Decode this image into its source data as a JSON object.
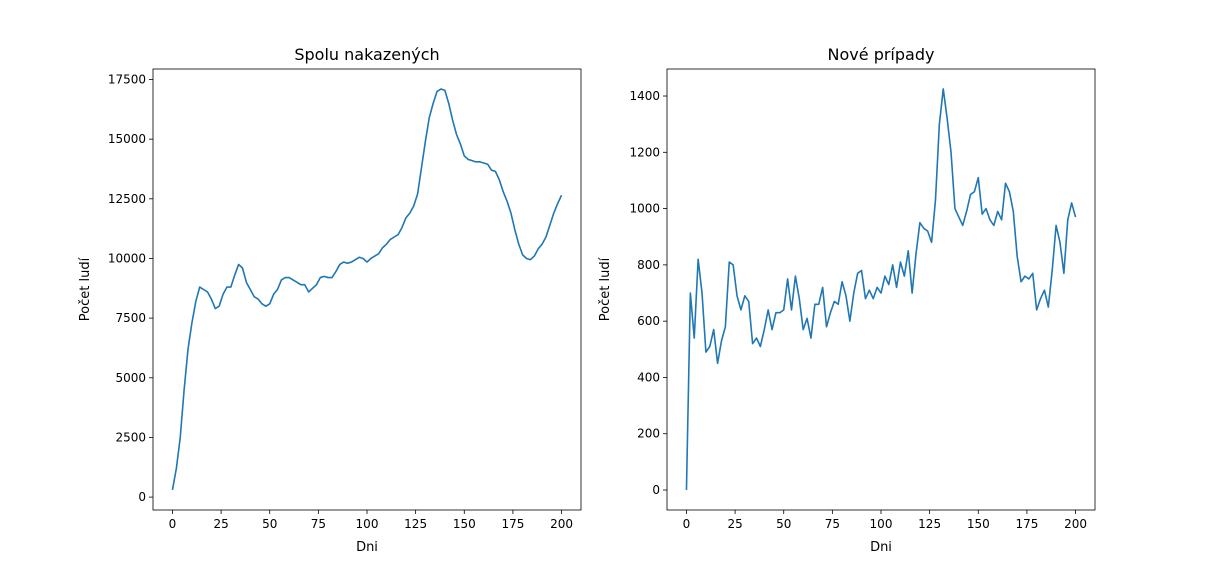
{
  "chart_data": [
    {
      "type": "line",
      "title": "Spolu nakazených",
      "xlabel": "Dni",
      "ylabel": "Počet ludí",
      "x": [
        0,
        2,
        4,
        6,
        8,
        10,
        12,
        14,
        16,
        18,
        20,
        22,
        24,
        26,
        28,
        30,
        32,
        34,
        36,
        38,
        40,
        42,
        44,
        46,
        48,
        50,
        52,
        54,
        56,
        58,
        60,
        62,
        64,
        66,
        68,
        70,
        72,
        74,
        76,
        78,
        80,
        82,
        84,
        86,
        88,
        90,
        92,
        94,
        96,
        98,
        100,
        102,
        104,
        106,
        108,
        110,
        112,
        114,
        116,
        118,
        120,
        122,
        124,
        126,
        128,
        130,
        132,
        134,
        136,
        138,
        140,
        142,
        144,
        146,
        148,
        150,
        152,
        154,
        156,
        158,
        160,
        162,
        164,
        166,
        168,
        170,
        172,
        174,
        176,
        178,
        180,
        182,
        184,
        186,
        188,
        190,
        192,
        194,
        196,
        198,
        200
      ],
      "series": [
        {
          "name": "Spolu",
          "color": "#1f77b4",
          "values": [
            300,
            1200,
            2500,
            4500,
            6200,
            7300,
            8200,
            8800,
            8700,
            8600,
            8300,
            7900,
            8000,
            8500,
            8800,
            8800,
            9300,
            9750,
            9600,
            9000,
            8700,
            8400,
            8300,
            8100,
            8000,
            8100,
            8500,
            8700,
            9100,
            9200,
            9200,
            9100,
            9000,
            8900,
            8900,
            8600,
            8750,
            8900,
            9200,
            9250,
            9200,
            9200,
            9450,
            9750,
            9850,
            9800,
            9850,
            9950,
            10050,
            10000,
            9850,
            10000,
            10100,
            10200,
            10450,
            10600,
            10800,
            10900,
            11000,
            11300,
            11700,
            11900,
            12200,
            12700,
            13800,
            14900,
            15900,
            16500,
            17000,
            17100,
            17050,
            16500,
            15800,
            15200,
            14800,
            14300,
            14150,
            14100,
            14050,
            14050,
            14000,
            13950,
            13700,
            13650,
            13300,
            12800,
            12400,
            11900,
            11200,
            10600,
            10150,
            10000,
            9950,
            10100,
            10400,
            10600,
            10900,
            11400,
            11900,
            12300,
            12650
          ]
        }
      ],
      "xlim": [
        -10,
        210
      ],
      "xticks": [
        0,
        25,
        50,
        75,
        100,
        125,
        150,
        175,
        200
      ],
      "ylim": [
        -540,
        17940
      ],
      "yticks": [
        0,
        2500,
        5000,
        7500,
        10000,
        12500,
        15000,
        17500
      ]
    },
    {
      "type": "line",
      "title": "Nové prípady",
      "xlabel": "Dni",
      "ylabel": "Počet ludí",
      "x": [
        0,
        2,
        4,
        6,
        8,
        10,
        12,
        14,
        16,
        18,
        20,
        22,
        24,
        26,
        28,
        30,
        32,
        34,
        36,
        38,
        40,
        42,
        44,
        46,
        48,
        50,
        52,
        54,
        56,
        58,
        60,
        62,
        64,
        66,
        68,
        70,
        72,
        74,
        76,
        78,
        80,
        82,
        84,
        86,
        88,
        90,
        92,
        94,
        96,
        98,
        100,
        102,
        104,
        106,
        108,
        110,
        112,
        114,
        116,
        118,
        120,
        122,
        124,
        126,
        128,
        130,
        132,
        134,
        136,
        138,
        140,
        142,
        144,
        146,
        148,
        150,
        152,
        154,
        156,
        158,
        160,
        162,
        164,
        166,
        168,
        170,
        172,
        174,
        176,
        178,
        180,
        182,
        184,
        186,
        188,
        190,
        192,
        194,
        196,
        198,
        200
      ],
      "series": [
        {
          "name": "Nové",
          "color": "#1f77b4",
          "values": [
            0,
            700,
            540,
            820,
            700,
            490,
            510,
            570,
            450,
            530,
            580,
            810,
            800,
            690,
            640,
            690,
            670,
            520,
            540,
            510,
            570,
            640,
            570,
            630,
            630,
            640,
            750,
            640,
            760,
            680,
            570,
            610,
            540,
            660,
            660,
            720,
            580,
            630,
            670,
            660,
            740,
            690,
            600,
            700,
            770,
            780,
            680,
            710,
            680,
            720,
            700,
            760,
            730,
            800,
            720,
            810,
            760,
            850,
            700,
            840,
            950,
            930,
            920,
            880,
            1030,
            1300,
            1425,
            1320,
            1200,
            1000,
            970,
            940,
            990,
            1050,
            1060,
            1110,
            980,
            1000,
            960,
            940,
            990,
            960,
            1090,
            1060,
            990,
            830,
            740,
            760,
            750,
            770,
            640,
            680,
            710,
            650,
            780,
            940,
            880,
            770,
            960,
            1020,
            970
          ]
        }
      ],
      "xlim": [
        -10,
        210
      ],
      "xticks": [
        0,
        25,
        50,
        75,
        100,
        125,
        150,
        175,
        200
      ],
      "ylim": [
        -71,
        1496
      ],
      "yticks": [
        0,
        200,
        400,
        600,
        800,
        1000,
        1200,
        1400
      ]
    }
  ]
}
